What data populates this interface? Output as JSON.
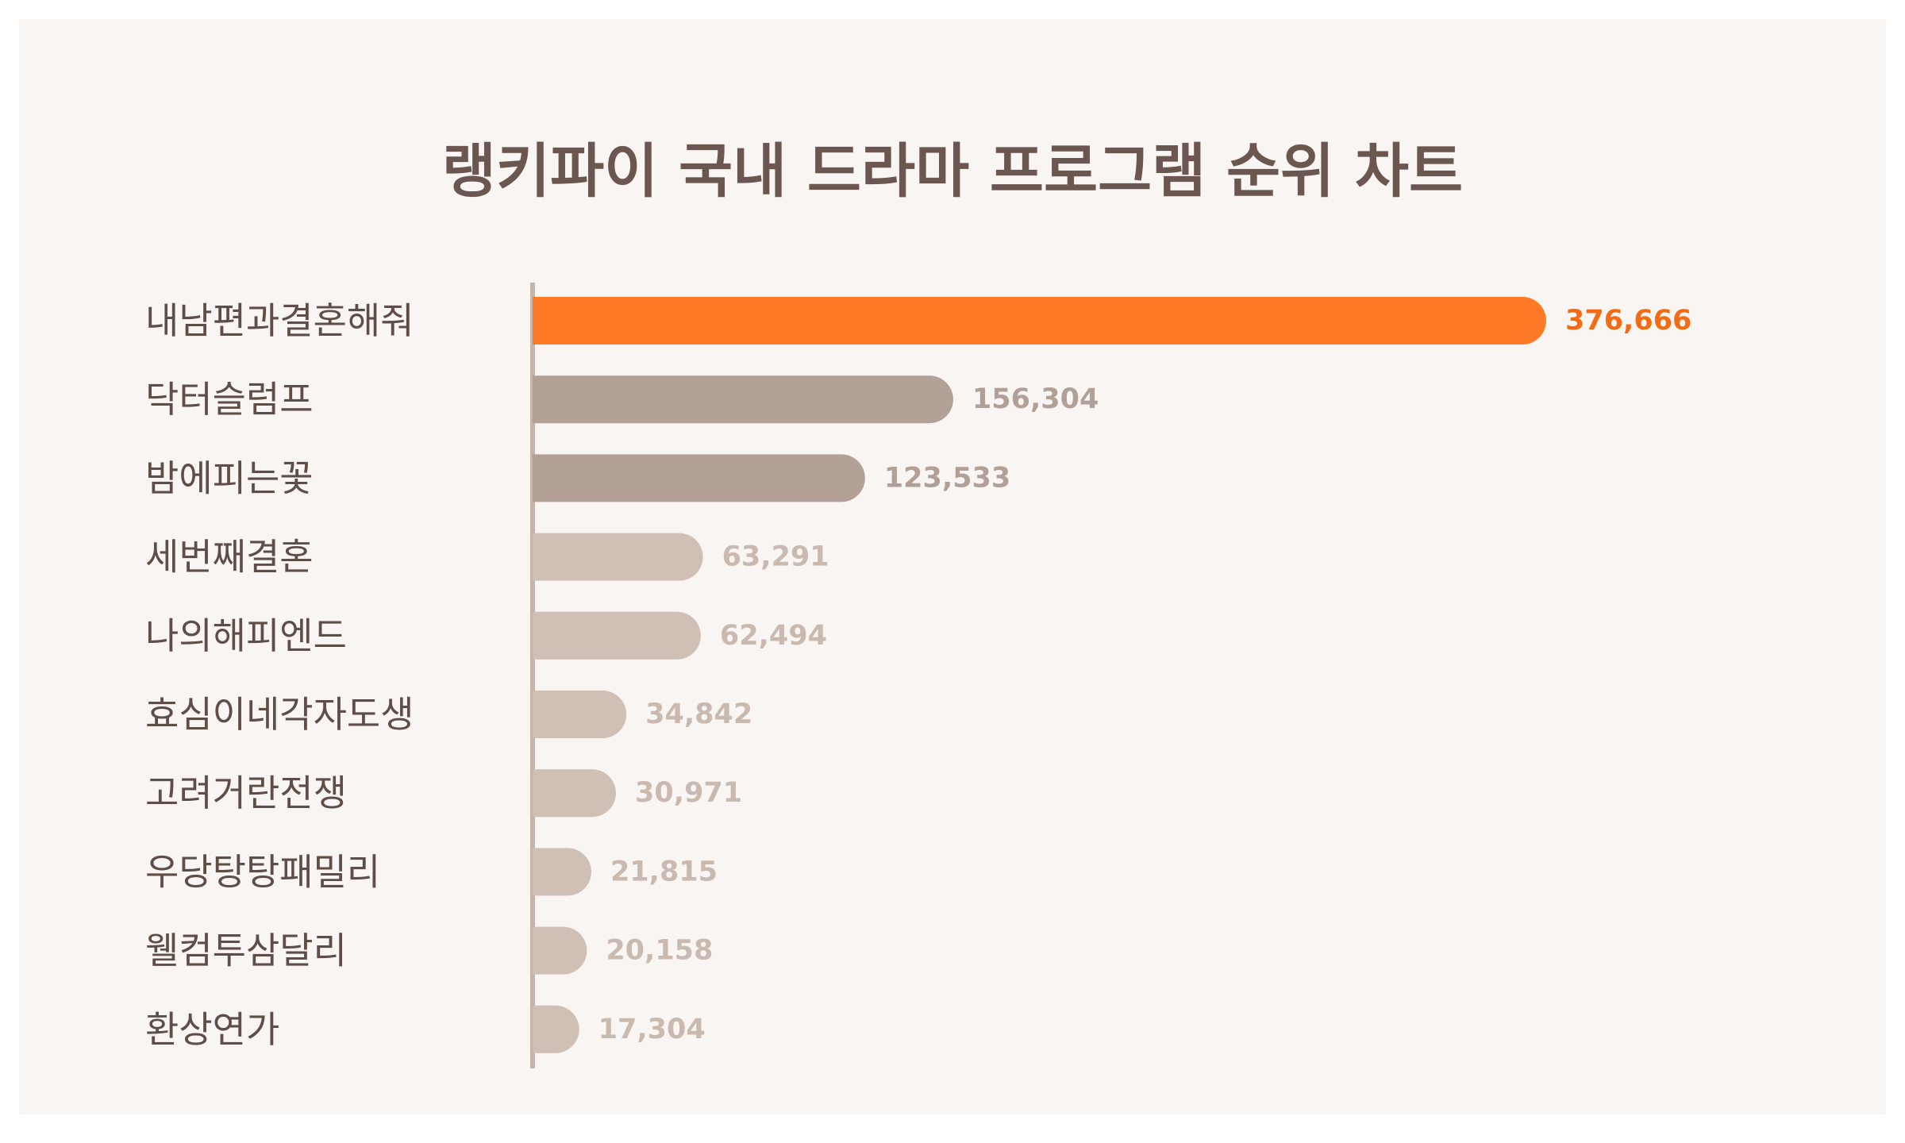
{
  "chart_data": {
    "type": "bar",
    "orientation": "horizontal",
    "title": "랭키파이 국내 드라마 프로그램 순위 차트",
    "categories": [
      "내남편과결혼해줘",
      "닥터슬럼프",
      "밤에피는꽃",
      "세번째결혼",
      "나의해피엔드",
      "효심이네각자도생",
      "고려거란전쟁",
      "우당탕탕패밀리",
      "웰컴투삼달리",
      "환상연가"
    ],
    "values": [
      376666,
      156304,
      123533,
      63291,
      62494,
      34842,
      30971,
      21815,
      20158,
      17304
    ],
    "value_labels": [
      "376,666",
      "156,304",
      "123,533",
      "63,291",
      "62,494",
      "34,842",
      "30,971",
      "21,815",
      "20,158",
      "17,304"
    ],
    "xlim": [
      0,
      376666
    ],
    "grid": false,
    "legend": "none",
    "colors": {
      "highlight_bar": "#ff7a26",
      "highlight_label": "#f36c14",
      "mid_bar": "#b3a097",
      "mid_label": "#b0a097",
      "low_bar": "#cfbfb5",
      "low_label": "#c9b9ae",
      "axis_line": "#c5b4aa",
      "category_text": "#5f4d47",
      "title_text": "#6b5650",
      "background": "#f9f5f3"
    }
  }
}
